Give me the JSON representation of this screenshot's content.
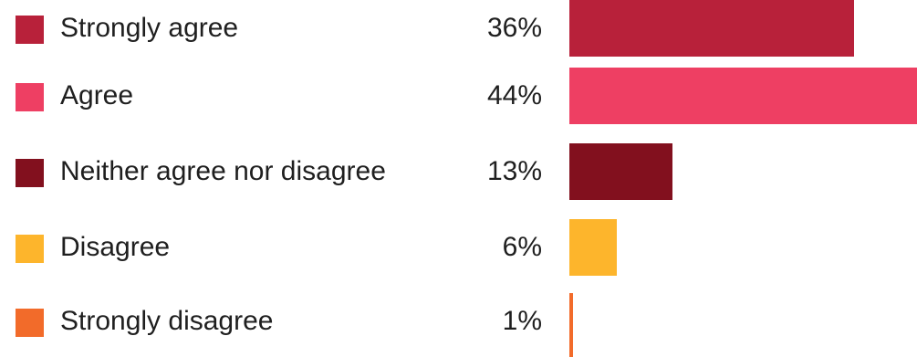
{
  "chart_data": {
    "type": "bar",
    "orientation": "horizontal",
    "categories": [
      "Strongly agree",
      "Agree",
      "Neither agree nor disagree",
      "Disagree",
      "Strongly disagree"
    ],
    "values": [
      36,
      44,
      13,
      6,
      1
    ],
    "value_labels": [
      "36%",
      "44%",
      "13%",
      "6%",
      "1%"
    ],
    "colors": [
      "#b8213a",
      "#ee3f63",
      "#82101e",
      "#fdb52c",
      "#f26b2a"
    ],
    "legend": "left",
    "grid": false
  }
}
